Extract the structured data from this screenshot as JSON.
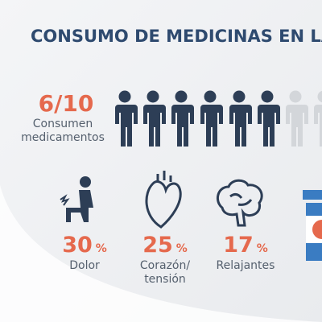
{
  "header": {
    "title": "CONSUMO DE MEDICINAS EN LA"
  },
  "summary": {
    "ratio": "6/10",
    "caption": [
      "Consumen",
      "medicamentos"
    ]
  },
  "stats": [
    {
      "value": 30,
      "unit": "%",
      "label": [
        "Dolor"
      ]
    },
    {
      "value": 25,
      "unit": "%",
      "label": [
        "Corazón/",
        "tensión"
      ]
    },
    {
      "value": 17,
      "unit": "%",
      "label": [
        "Relajantes"
      ]
    }
  ]
}
